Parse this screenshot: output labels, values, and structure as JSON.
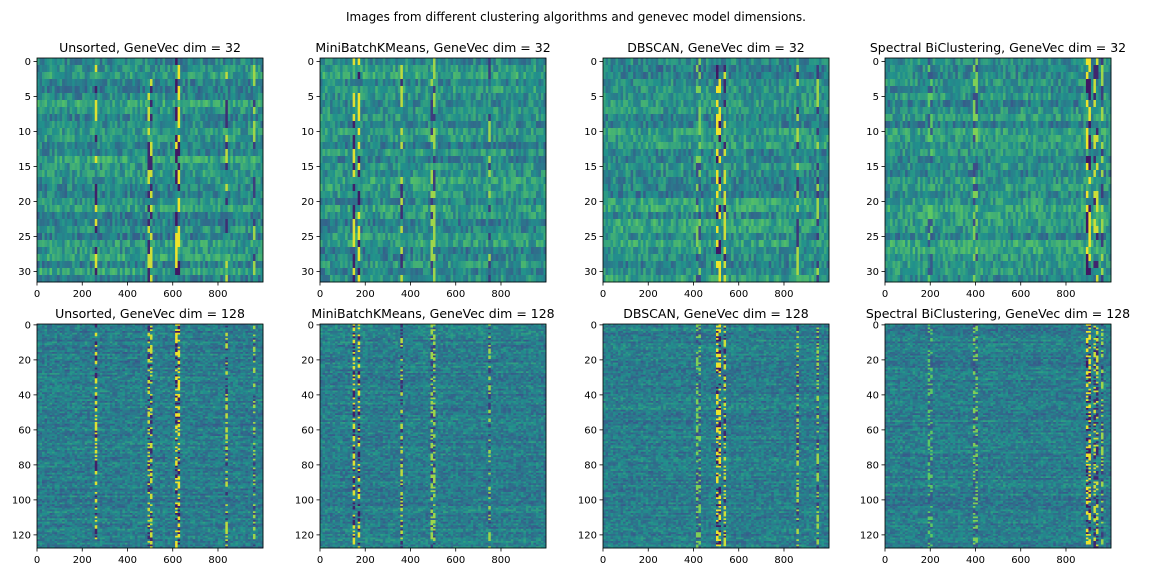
{
  "suptitle": "Images from different clustering algorithms and genevec model dimensions.",
  "colormap": [
    "#440154",
    "#3b528b",
    "#21918c",
    "#5ec962",
    "#fde725"
  ],
  "chart_data": [
    {
      "type": "heatmap",
      "title": "Unsorted, GeneVec dim = 32",
      "rows": 32,
      "cols": 1000,
      "x_ticks": [
        0,
        200,
        400,
        600,
        800
      ],
      "y_ticks": [
        0,
        5,
        10,
        15,
        20,
        25,
        30
      ],
      "xlim": [
        0,
        999
      ],
      "ylim": [
        31,
        0
      ],
      "dim": 32,
      "pattern": "unsorted"
    },
    {
      "type": "heatmap",
      "title": "MiniBatchKMeans, GeneVec dim = 32",
      "rows": 32,
      "cols": 1000,
      "x_ticks": [
        0,
        200,
        400,
        600,
        800
      ],
      "y_ticks": [
        0,
        5,
        10,
        15,
        20,
        25,
        30
      ],
      "xlim": [
        0,
        999
      ],
      "ylim": [
        31,
        0
      ],
      "dim": 32,
      "pattern": "kmeans"
    },
    {
      "type": "heatmap",
      "title": "DBSCAN, GeneVec dim = 32",
      "rows": 32,
      "cols": 1000,
      "x_ticks": [
        0,
        200,
        400,
        600,
        800
      ],
      "y_ticks": [
        0,
        5,
        10,
        15,
        20,
        25,
        30
      ],
      "xlim": [
        0,
        999
      ],
      "ylim": [
        31,
        0
      ],
      "dim": 32,
      "pattern": "dbscan"
    },
    {
      "type": "heatmap",
      "title": "Spectral BiClustering, GeneVec dim = 32",
      "rows": 32,
      "cols": 1000,
      "x_ticks": [
        0,
        200,
        400,
        600,
        800
      ],
      "y_ticks": [
        0,
        5,
        10,
        15,
        20,
        25,
        30
      ],
      "xlim": [
        0,
        999
      ],
      "ylim": [
        31,
        0
      ],
      "dim": 32,
      "pattern": "spectral"
    },
    {
      "type": "heatmap",
      "title": "Unsorted, GeneVec dim = 128",
      "rows": 128,
      "cols": 1000,
      "x_ticks": [
        0,
        200,
        400,
        600,
        800
      ],
      "y_ticks": [
        0,
        20,
        40,
        60,
        80,
        100,
        120
      ],
      "xlim": [
        0,
        999
      ],
      "ylim": [
        127,
        0
      ],
      "dim": 128,
      "pattern": "unsorted"
    },
    {
      "type": "heatmap",
      "title": "MiniBatchKMeans, GeneVec dim = 128",
      "rows": 128,
      "cols": 1000,
      "x_ticks": [
        0,
        200,
        400,
        600,
        800
      ],
      "y_ticks": [
        0,
        20,
        40,
        60,
        80,
        100,
        120
      ],
      "xlim": [
        0,
        999
      ],
      "ylim": [
        127,
        0
      ],
      "dim": 128,
      "pattern": "kmeans"
    },
    {
      "type": "heatmap",
      "title": "DBSCAN, GeneVec dim = 128",
      "rows": 128,
      "cols": 1000,
      "x_ticks": [
        0,
        200,
        400,
        600,
        800
      ],
      "y_ticks": [
        0,
        20,
        40,
        60,
        80,
        100,
        120
      ],
      "xlim": [
        0,
        999
      ],
      "ylim": [
        127,
        0
      ],
      "dim": 128,
      "pattern": "dbscan"
    },
    {
      "type": "heatmap",
      "title": "Spectral BiClustering, GeneVec dim = 128",
      "rows": 128,
      "cols": 1000,
      "x_ticks": [
        0,
        200,
        400,
        600,
        800
      ],
      "y_ticks": [
        0,
        20,
        40,
        60,
        80,
        100,
        120
      ],
      "xlim": [
        0,
        999
      ],
      "ylim": [
        127,
        0
      ],
      "dim": 128,
      "pattern": "spectral"
    }
  ]
}
